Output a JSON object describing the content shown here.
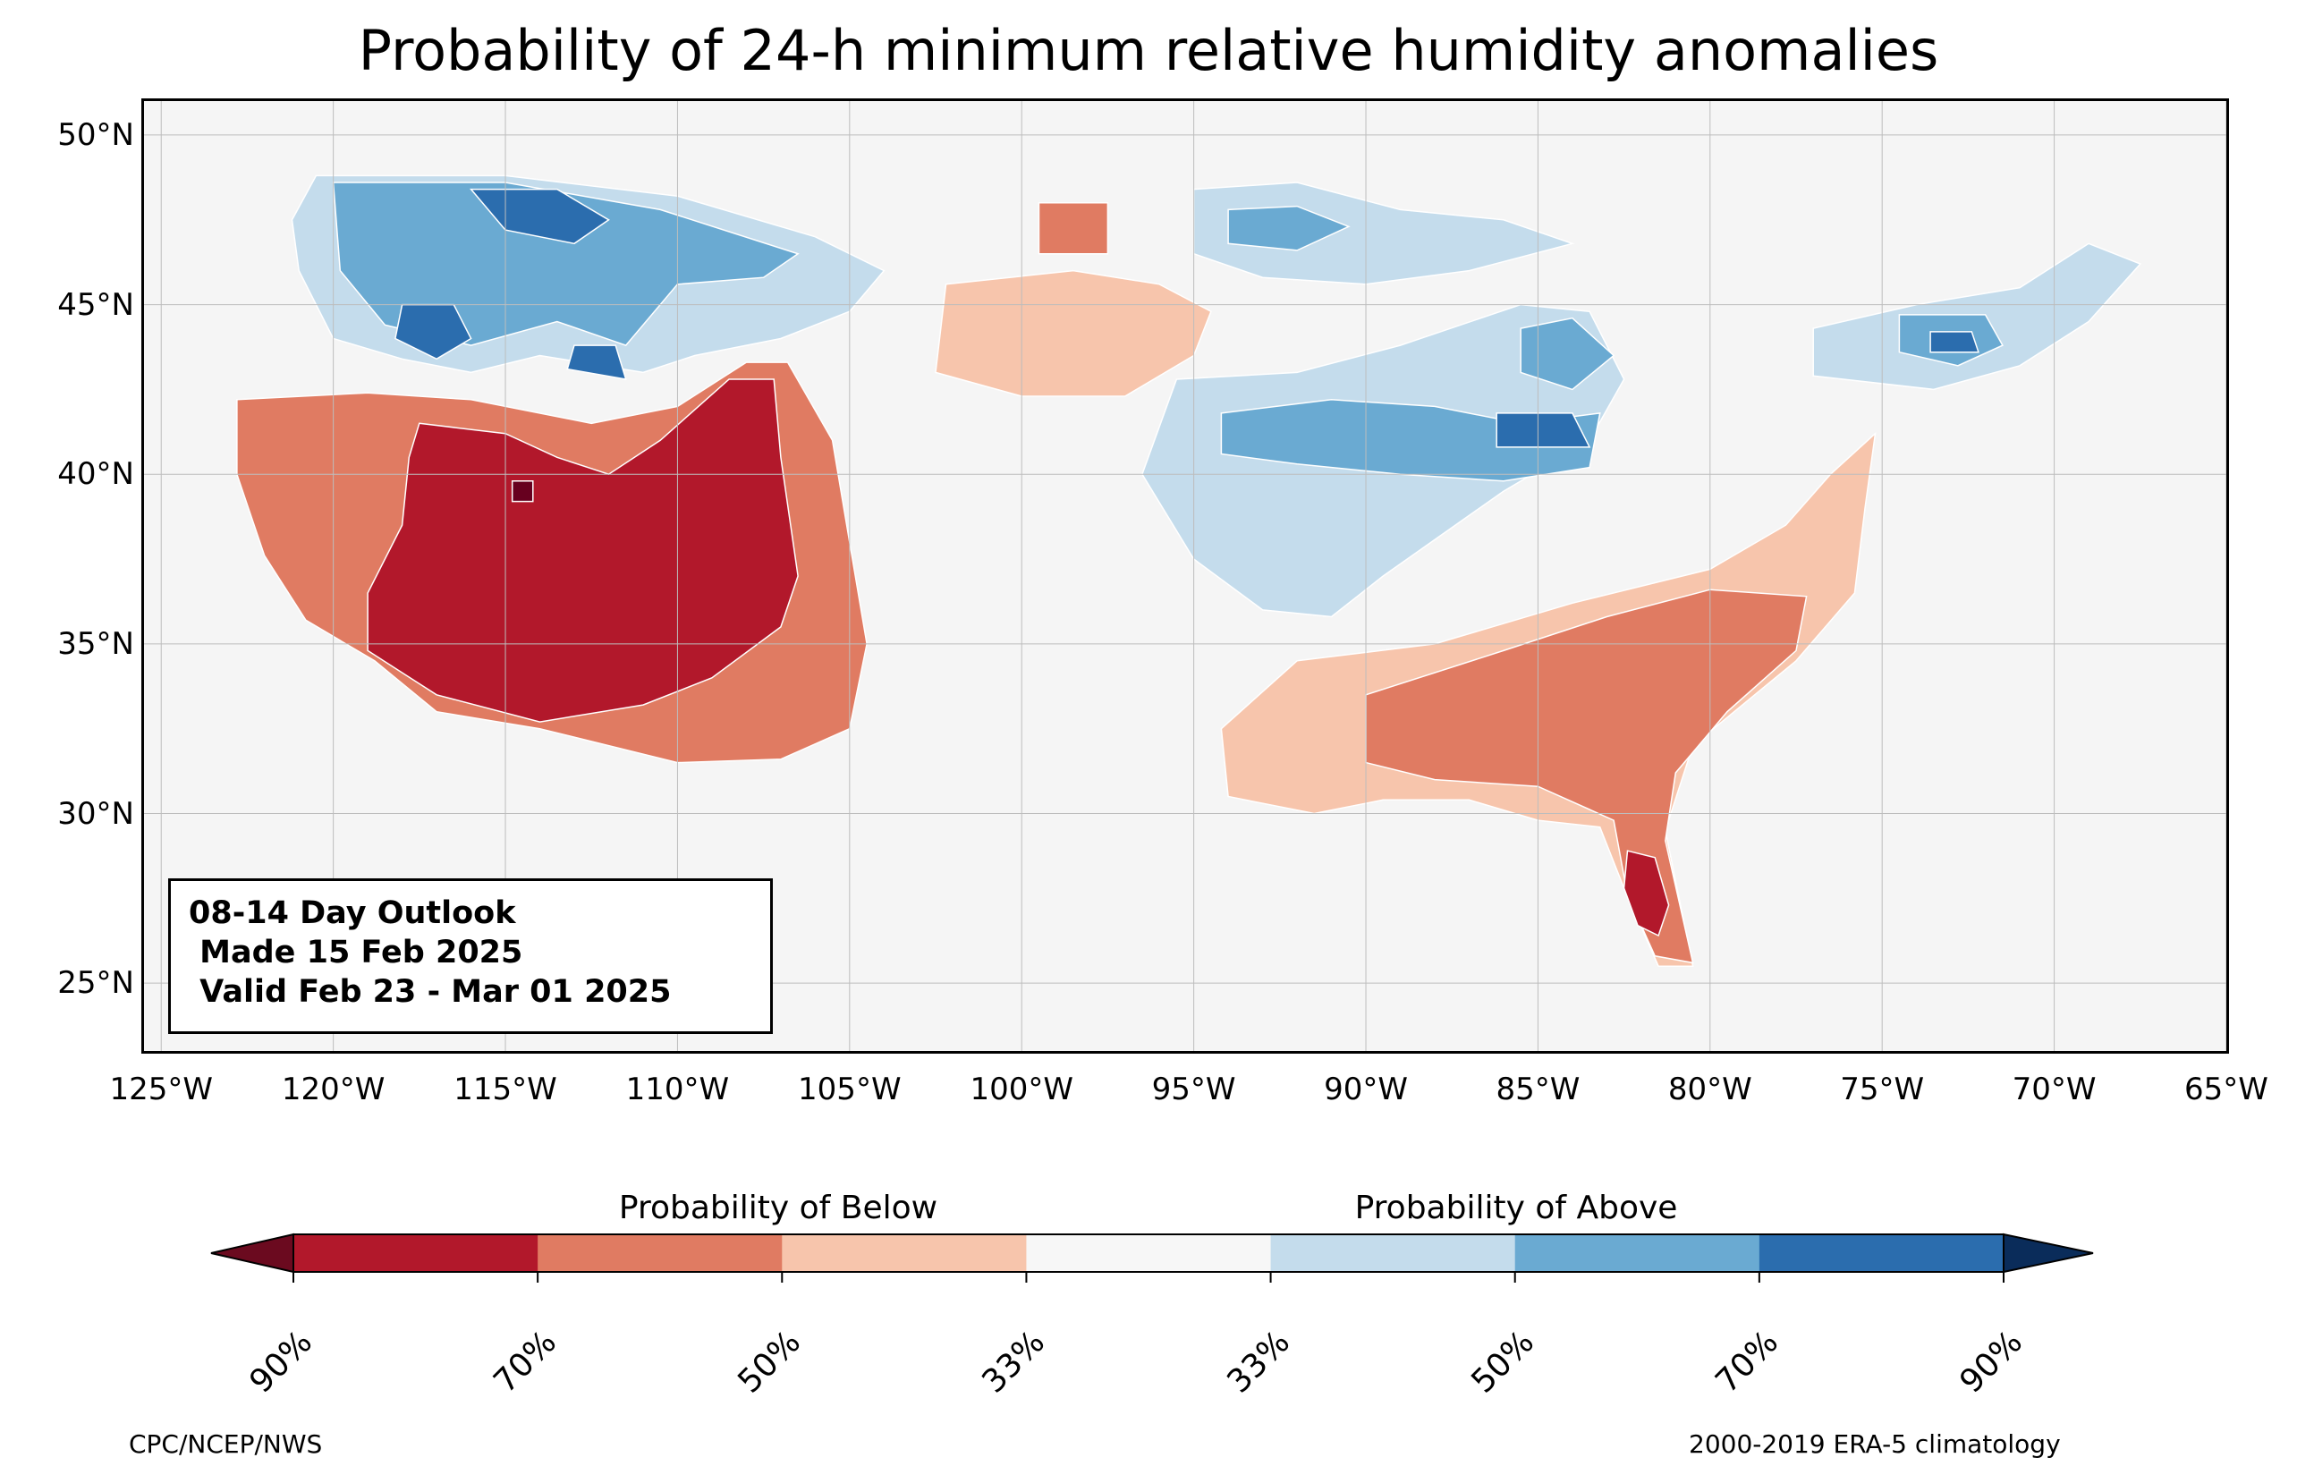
{
  "title": "Probability of 24-h minimum relative humidity anomalies",
  "map": {
    "lat_labels": [
      "50°N",
      "45°N",
      "40°N",
      "35°N",
      "30°N",
      "25°N"
    ],
    "lat_values": [
      50,
      45,
      40,
      35,
      30,
      25
    ],
    "lon_labels": [
      "125°W",
      "120°W",
      "115°W",
      "110°W",
      "105°W",
      "100°W",
      "95°W",
      "90°W",
      "85°W",
      "80°W",
      "75°W",
      "70°W",
      "65°W"
    ],
    "lon_values": [
      -125,
      -120,
      -115,
      -110,
      -105,
      -100,
      -95,
      -90,
      -85,
      -80,
      -75,
      -70,
      -65
    ],
    "extent": {
      "lon_min": -125.5,
      "lon_max": -65,
      "lat_min": 23,
      "lat_max": 51
    },
    "background_color": "#f5f5f5"
  },
  "info_box": {
    "line1": "08-14 Day Outlook",
    "line2": " Made 15 Feb 2025",
    "line3": " Valid Feb 23 - Mar 01 2025"
  },
  "colorbar": {
    "below_label": "Probability of Below",
    "above_label": "Probability of Above",
    "colors": [
      "#67001f",
      "#b2182b",
      "#d6604d",
      "#f4a582",
      "#fddbc7",
      "#f7f7f7",
      "#d1e5f0",
      "#92c5de",
      "#4393c3",
      "#2166ac",
      "#053061"
    ],
    "segment_colors": [
      "#b2182b",
      "#e07b62",
      "#f7c5ac",
      "#f7f7f7",
      "#c4dcec",
      "#6aaad2",
      "#2b6dae"
    ],
    "extend_low_color": "#6b0a1f",
    "extend_high_color": "#0a2c5a",
    "tick_labels": [
      "90%",
      "70%",
      "50%",
      "33%",
      "33%",
      "50%",
      "70%",
      "90%"
    ]
  },
  "footer": {
    "left": "CPC/NCEP/NWS",
    "right": "2000-2019 ERA-5 climatology"
  },
  "regions": [
    {
      "category": "below-50",
      "color": "#e07b62",
      "coords": [
        [
          -122.8,
          42.2
        ],
        [
          -119,
          42.4
        ],
        [
          -116,
          42.2
        ],
        [
          -112.5,
          41.5
        ],
        [
          -110,
          42
        ],
        [
          -108,
          43.3
        ],
        [
          -106.8,
          43.3
        ],
        [
          -105.5,
          41
        ],
        [
          -105,
          38
        ],
        [
          -104.5,
          35
        ],
        [
          -105,
          32.5
        ],
        [
          -107,
          31.6
        ],
        [
          -110,
          31.5
        ],
        [
          -114,
          32.5
        ],
        [
          -117,
          33
        ],
        [
          -118.8,
          34.5
        ],
        [
          -120.8,
          35.7
        ],
        [
          -122,
          37.6
        ],
        [
          -122.8,
          40
        ]
      ]
    },
    {
      "category": "below-70",
      "color": "#b2182b",
      "coords": [
        [
          -117.5,
          41.5
        ],
        [
          -115,
          41.2
        ],
        [
          -113.5,
          40.5
        ],
        [
          -112,
          40
        ],
        [
          -110.5,
          41
        ],
        [
          -108.5,
          42.8
        ],
        [
          -107.2,
          42.8
        ],
        [
          -107,
          40.5
        ],
        [
          -106.5,
          37
        ],
        [
          -107,
          35.5
        ],
        [
          -109,
          34
        ],
        [
          -111,
          33.2
        ],
        [
          -114,
          32.7
        ],
        [
          -117,
          33.5
        ],
        [
          -119,
          34.8
        ],
        [
          -119,
          36.5
        ],
        [
          -118,
          38.5
        ],
        [
          -117.8,
          40.5
        ]
      ]
    },
    {
      "category": "below-90",
      "color": "#67001f",
      "coords": [
        [
          -114.8,
          39.8
        ],
        [
          -114.2,
          39.8
        ],
        [
          -114.2,
          39.2
        ],
        [
          -114.8,
          39.2
        ]
      ]
    },
    {
      "category": "below-50",
      "color": "#e07b62",
      "coords": [
        [
          -101.5,
          44.8
        ],
        [
          -98.5,
          45.2
        ],
        [
          -96.5,
          44.8
        ],
        [
          -95,
          44.5
        ],
        [
          -95.5,
          43.8
        ],
        [
          -97.5,
          43
        ],
        [
          -100,
          42.8
        ],
        [
          -101.5,
          43.3
        ]
      ]
    },
    {
      "category": "below-50",
      "color": "#e07b62",
      "coords": [
        [
          -99.5,
          48
        ],
        [
          -97.5,
          48
        ],
        [
          -97.5,
          46.5
        ],
        [
          -99.5,
          46.5
        ]
      ]
    },
    {
      "category": "below-33",
      "color": "#f7c5ac",
      "coords": [
        [
          -102.2,
          45.6
        ],
        [
          -98.5,
          46
        ],
        [
          -96,
          45.6
        ],
        [
          -94.5,
          44.8
        ],
        [
          -95,
          43.5
        ],
        [
          -97,
          42.3
        ],
        [
          -100,
          42.3
        ],
        [
          -102.5,
          43
        ]
      ]
    },
    {
      "category": "below-33",
      "color": "#f7c5ac",
      "coords": [
        [
          -92,
          34.5
        ],
        [
          -88,
          35
        ],
        [
          -84,
          36.2
        ],
        [
          -80,
          37.2
        ],
        [
          -77.8,
          38.5
        ],
        [
          -76.5,
          40
        ],
        [
          -75.2,
          41.2
        ],
        [
          -75.5,
          39
        ],
        [
          -75.8,
          36.5
        ],
        [
          -77.5,
          34.5
        ],
        [
          -80.5,
          32
        ],
        [
          -81.3,
          29.5
        ],
        [
          -80.5,
          25.5
        ],
        [
          -81.5,
          25.5
        ],
        [
          -82.5,
          27.8
        ],
        [
          -83.2,
          29.6
        ],
        [
          -85,
          29.8
        ],
        [
          -87,
          30.4
        ],
        [
          -89.5,
          30.4
        ],
        [
          -91.5,
          30
        ],
        [
          -94,
          30.5
        ],
        [
          -94.2,
          32.5
        ]
      ]
    },
    {
      "category": "below-50",
      "color": "#e07b62",
      "coords": [
        [
          -90,
          33.5
        ],
        [
          -86,
          34.8
        ],
        [
          -83,
          35.8
        ],
        [
          -80,
          36.6
        ],
        [
          -77.2,
          36.4
        ],
        [
          -77.5,
          34.8
        ],
        [
          -79.5,
          33
        ],
        [
          -81,
          31.2
        ],
        [
          -81.3,
          29.2
        ],
        [
          -80.5,
          25.6
        ],
        [
          -81.6,
          25.8
        ],
        [
          -82.4,
          27.6
        ],
        [
          -82.8,
          29.8
        ],
        [
          -85,
          30.8
        ],
        [
          -88,
          31
        ],
        [
          -90,
          31.5
        ]
      ]
    },
    {
      "category": "below-70",
      "color": "#b2182b",
      "coords": [
        [
          -82.4,
          28.9
        ],
        [
          -81.6,
          28.7
        ],
        [
          -81.2,
          27.3
        ],
        [
          -81.5,
          26.4
        ],
        [
          -82.1,
          26.7
        ],
        [
          -82.5,
          27.8
        ]
      ]
    },
    {
      "category": "above-33",
      "color": "#c4dcec",
      "coords": [
        [
          -95.5,
          42.8
        ],
        [
          -92,
          43
        ],
        [
          -89,
          43.8
        ],
        [
          -85.5,
          45
        ],
        [
          -83.5,
          44.8
        ],
        [
          -82.5,
          42.8
        ],
        [
          -83.5,
          41
        ],
        [
          -86,
          39.5
        ],
        [
          -89.5,
          37
        ],
        [
          -91,
          35.8
        ],
        [
          -93,
          36
        ],
        [
          -95,
          37.5
        ],
        [
          -96.5,
          40
        ]
      ]
    },
    {
      "category": "above-50",
      "color": "#6aaad2",
      "coords": [
        [
          -94.2,
          41.8
        ],
        [
          -91,
          42.2
        ],
        [
          -88,
          42
        ],
        [
          -85.5,
          41.5
        ],
        [
          -83.2,
          41.8
        ],
        [
          -83.5,
          40.2
        ],
        [
          -86,
          39.8
        ],
        [
          -89,
          40
        ],
        [
          -92,
          40.3
        ],
        [
          -94.2,
          40.6
        ]
      ]
    },
    {
      "category": "above-50",
      "color": "#6aaad2",
      "coords": [
        [
          -85.5,
          44.3
        ],
        [
          -84,
          44.6
        ],
        [
          -82.8,
          43.5
        ],
        [
          -84,
          42.5
        ],
        [
          -85.5,
          43
        ]
      ]
    },
    {
      "category": "above-70",
      "color": "#2b6dae",
      "coords": [
        [
          -86.2,
          41.8
        ],
        [
          -84,
          41.8
        ],
        [
          -83.5,
          40.8
        ],
        [
          -86.2,
          40.8
        ]
      ]
    },
    {
      "category": "above-33",
      "color": "#c4dcec",
      "coords": [
        [
          -95,
          48.4
        ],
        [
          -92,
          48.6
        ],
        [
          -89,
          47.8
        ],
        [
          -86,
          47.5
        ],
        [
          -84,
          46.8
        ],
        [
          -87,
          46
        ],
        [
          -90,
          45.6
        ],
        [
          -93,
          45.8
        ],
        [
          -95,
          46.5
        ]
      ]
    },
    {
      "category": "above-50",
      "color": "#6aaad2",
      "coords": [
        [
          -94,
          47.8
        ],
        [
          -92,
          47.9
        ],
        [
          -90.5,
          47.3
        ],
        [
          -92,
          46.6
        ],
        [
          -94,
          46.8
        ]
      ]
    },
    {
      "category": "above-33",
      "color": "#c4dcec",
      "coords": [
        [
          -120.5,
          48.8
        ],
        [
          -115,
          48.8
        ],
        [
          -110,
          48.2
        ],
        [
          -106,
          47
        ],
        [
          -104,
          46
        ],
        [
          -105,
          44.8
        ],
        [
          -107,
          44
        ],
        [
          -109.5,
          43.5
        ],
        [
          -111,
          43
        ],
        [
          -114,
          43.5
        ],
        [
          -116,
          43
        ],
        [
          -118,
          43.4
        ],
        [
          -120,
          44
        ],
        [
          -121,
          46
        ],
        [
          -121.2,
          47.5
        ]
      ]
    },
    {
      "category": "above-50",
      "color": "#6aaad2",
      "coords": [
        [
          -120,
          48.6
        ],
        [
          -115,
          48.6
        ],
        [
          -110.5,
          47.8
        ],
        [
          -106.5,
          46.5
        ],
        [
          -107.5,
          45.8
        ],
        [
          -110,
          45.6
        ],
        [
          -111.5,
          43.8
        ],
        [
          -113.5,
          44.5
        ],
        [
          -116,
          43.8
        ],
        [
          -118.5,
          44.4
        ],
        [
          -119.8,
          46
        ]
      ]
    },
    {
      "category": "above-70",
      "color": "#2b6dae",
      "coords": [
        [
          -116,
          48.4
        ],
        [
          -113.5,
          48.4
        ],
        [
          -112,
          47.5
        ],
        [
          -113,
          46.8
        ],
        [
          -115,
          47.2
        ]
      ]
    },
    {
      "category": "above-70",
      "color": "#2b6dae",
      "coords": [
        [
          -118,
          45
        ],
        [
          -116.5,
          45
        ],
        [
          -116,
          44
        ],
        [
          -117,
          43.4
        ],
        [
          -118.2,
          44
        ]
      ]
    },
    {
      "category": "above-70",
      "color": "#2b6dae",
      "coords": [
        [
          -113,
          43.8
        ],
        [
          -111.8,
          43.8
        ],
        [
          -111.5,
          42.8
        ],
        [
          -113.2,
          43.1
        ]
      ]
    },
    {
      "category": "above-33",
      "color": "#c4dcec",
      "coords": [
        [
          -77,
          44.3
        ],
        [
          -74,
          45
        ],
        [
          -71,
          45.5
        ],
        [
          -69,
          46.8
        ],
        [
          -67.5,
          46.2
        ],
        [
          -69,
          44.5
        ],
        [
          -71,
          43.2
        ],
        [
          -73.5,
          42.5
        ],
        [
          -77,
          42.9
        ]
      ]
    },
    {
      "category": "above-50",
      "color": "#6aaad2",
      "coords": [
        [
          -74.5,
          44.7
        ],
        [
          -72,
          44.7
        ],
        [
          -71.5,
          43.8
        ],
        [
          -72.8,
          43.2
        ],
        [
          -74.5,
          43.6
        ]
      ]
    },
    {
      "category": "above-70",
      "color": "#2b6dae",
      "coords": [
        [
          -73.6,
          44.2
        ],
        [
          -72.4,
          44.2
        ],
        [
          -72.2,
          43.6
        ],
        [
          -73.6,
          43.6
        ]
      ]
    }
  ]
}
